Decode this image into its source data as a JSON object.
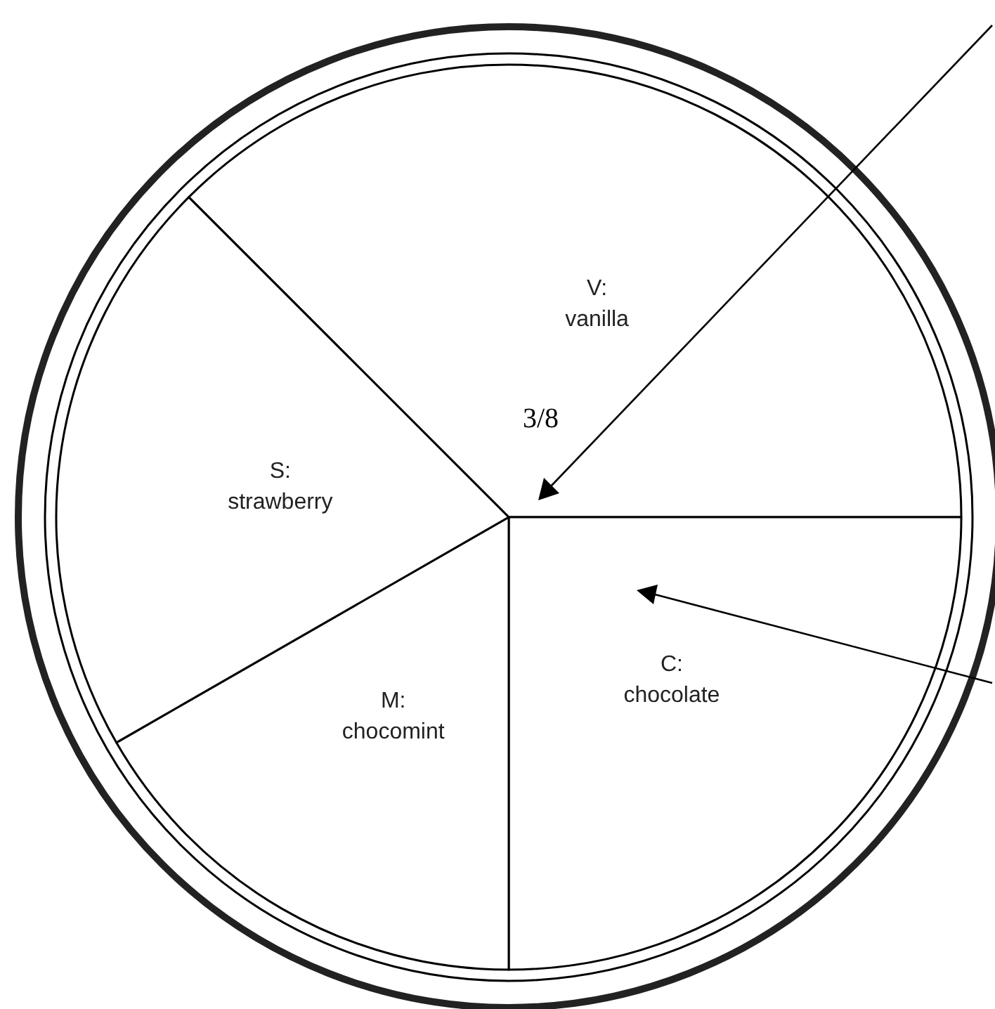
{
  "chart_data": {
    "type": "pie",
    "categories": [
      "V:\nvanilla",
      "C:\nchocolate",
      "M:\nchocomint",
      "S:\nstrawberry"
    ],
    "values": [
      37.5,
      25,
      16.7,
      20.8
    ],
    "colors": [
      "#ffffff",
      "#ffffff",
      "#ffffff",
      "#ffffff"
    ],
    "annotations": [
      "3/8"
    ],
    "legend": false
  }
}
